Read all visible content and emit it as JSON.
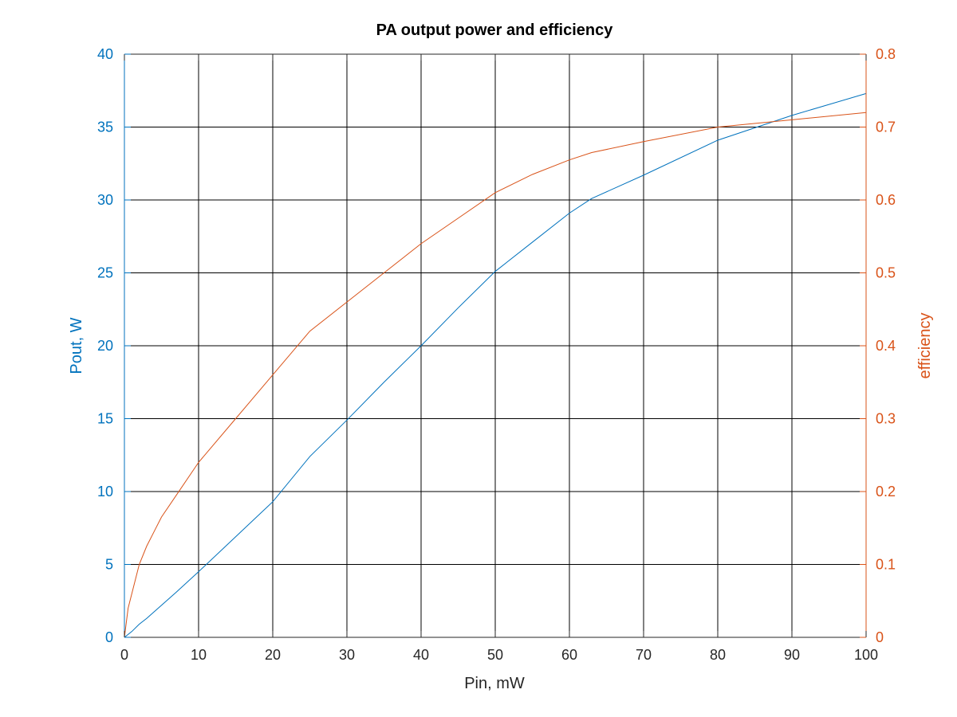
{
  "chart_data": {
    "type": "line",
    "title": "PA output power and efficiency",
    "xlabel": "Pin, mW",
    "ylabel_left": "Pout, W",
    "ylabel_right": "efficiency",
    "xlim": [
      0,
      100
    ],
    "ylim_left": [
      0,
      40
    ],
    "ylim_right": [
      0,
      0.8
    ],
    "x_ticks": [
      0,
      10,
      20,
      30,
      40,
      50,
      60,
      70,
      80,
      90,
      100
    ],
    "y_left_ticks": [
      0,
      5,
      10,
      15,
      20,
      25,
      30,
      35,
      40
    ],
    "y_right_ticks": [
      0,
      0.1,
      0.2,
      0.3,
      0.4,
      0.5,
      0.6,
      0.7,
      0.8
    ],
    "grid": true,
    "colors": {
      "left": "#0072BD",
      "right": "#D95319",
      "grid": "#000000"
    },
    "series": [
      {
        "axis": "left",
        "color": "#0072BD",
        "x": [
          0,
          1,
          2,
          3,
          5,
          7,
          10,
          15,
          20,
          25,
          30,
          35,
          40,
          45,
          50,
          55,
          60,
          63,
          70,
          80,
          90,
          100
        ],
        "values": [
          0,
          0.4,
          0.9,
          1.3,
          2.2,
          3.1,
          4.5,
          6.9,
          9.3,
          12.4,
          14.9,
          17.5,
          20.0,
          22.6,
          25.1,
          27.1,
          29.1,
          30.1,
          31.7,
          34.1,
          35.8,
          37.3
        ]
      },
      {
        "axis": "right",
        "color": "#D95319",
        "x": [
          0,
          0.5,
          1,
          2,
          3,
          4,
          5,
          7,
          10,
          15,
          20,
          25,
          30,
          35,
          40,
          45,
          50,
          55,
          60,
          63,
          70,
          80,
          90,
          100
        ],
        "values": [
          0,
          0.04,
          0.06,
          0.1,
          0.125,
          0.145,
          0.165,
          0.195,
          0.24,
          0.3,
          0.36,
          0.42,
          0.46,
          0.5,
          0.54,
          0.575,
          0.61,
          0.635,
          0.655,
          0.665,
          0.68,
          0.7,
          0.71,
          0.72
        ]
      }
    ]
  }
}
